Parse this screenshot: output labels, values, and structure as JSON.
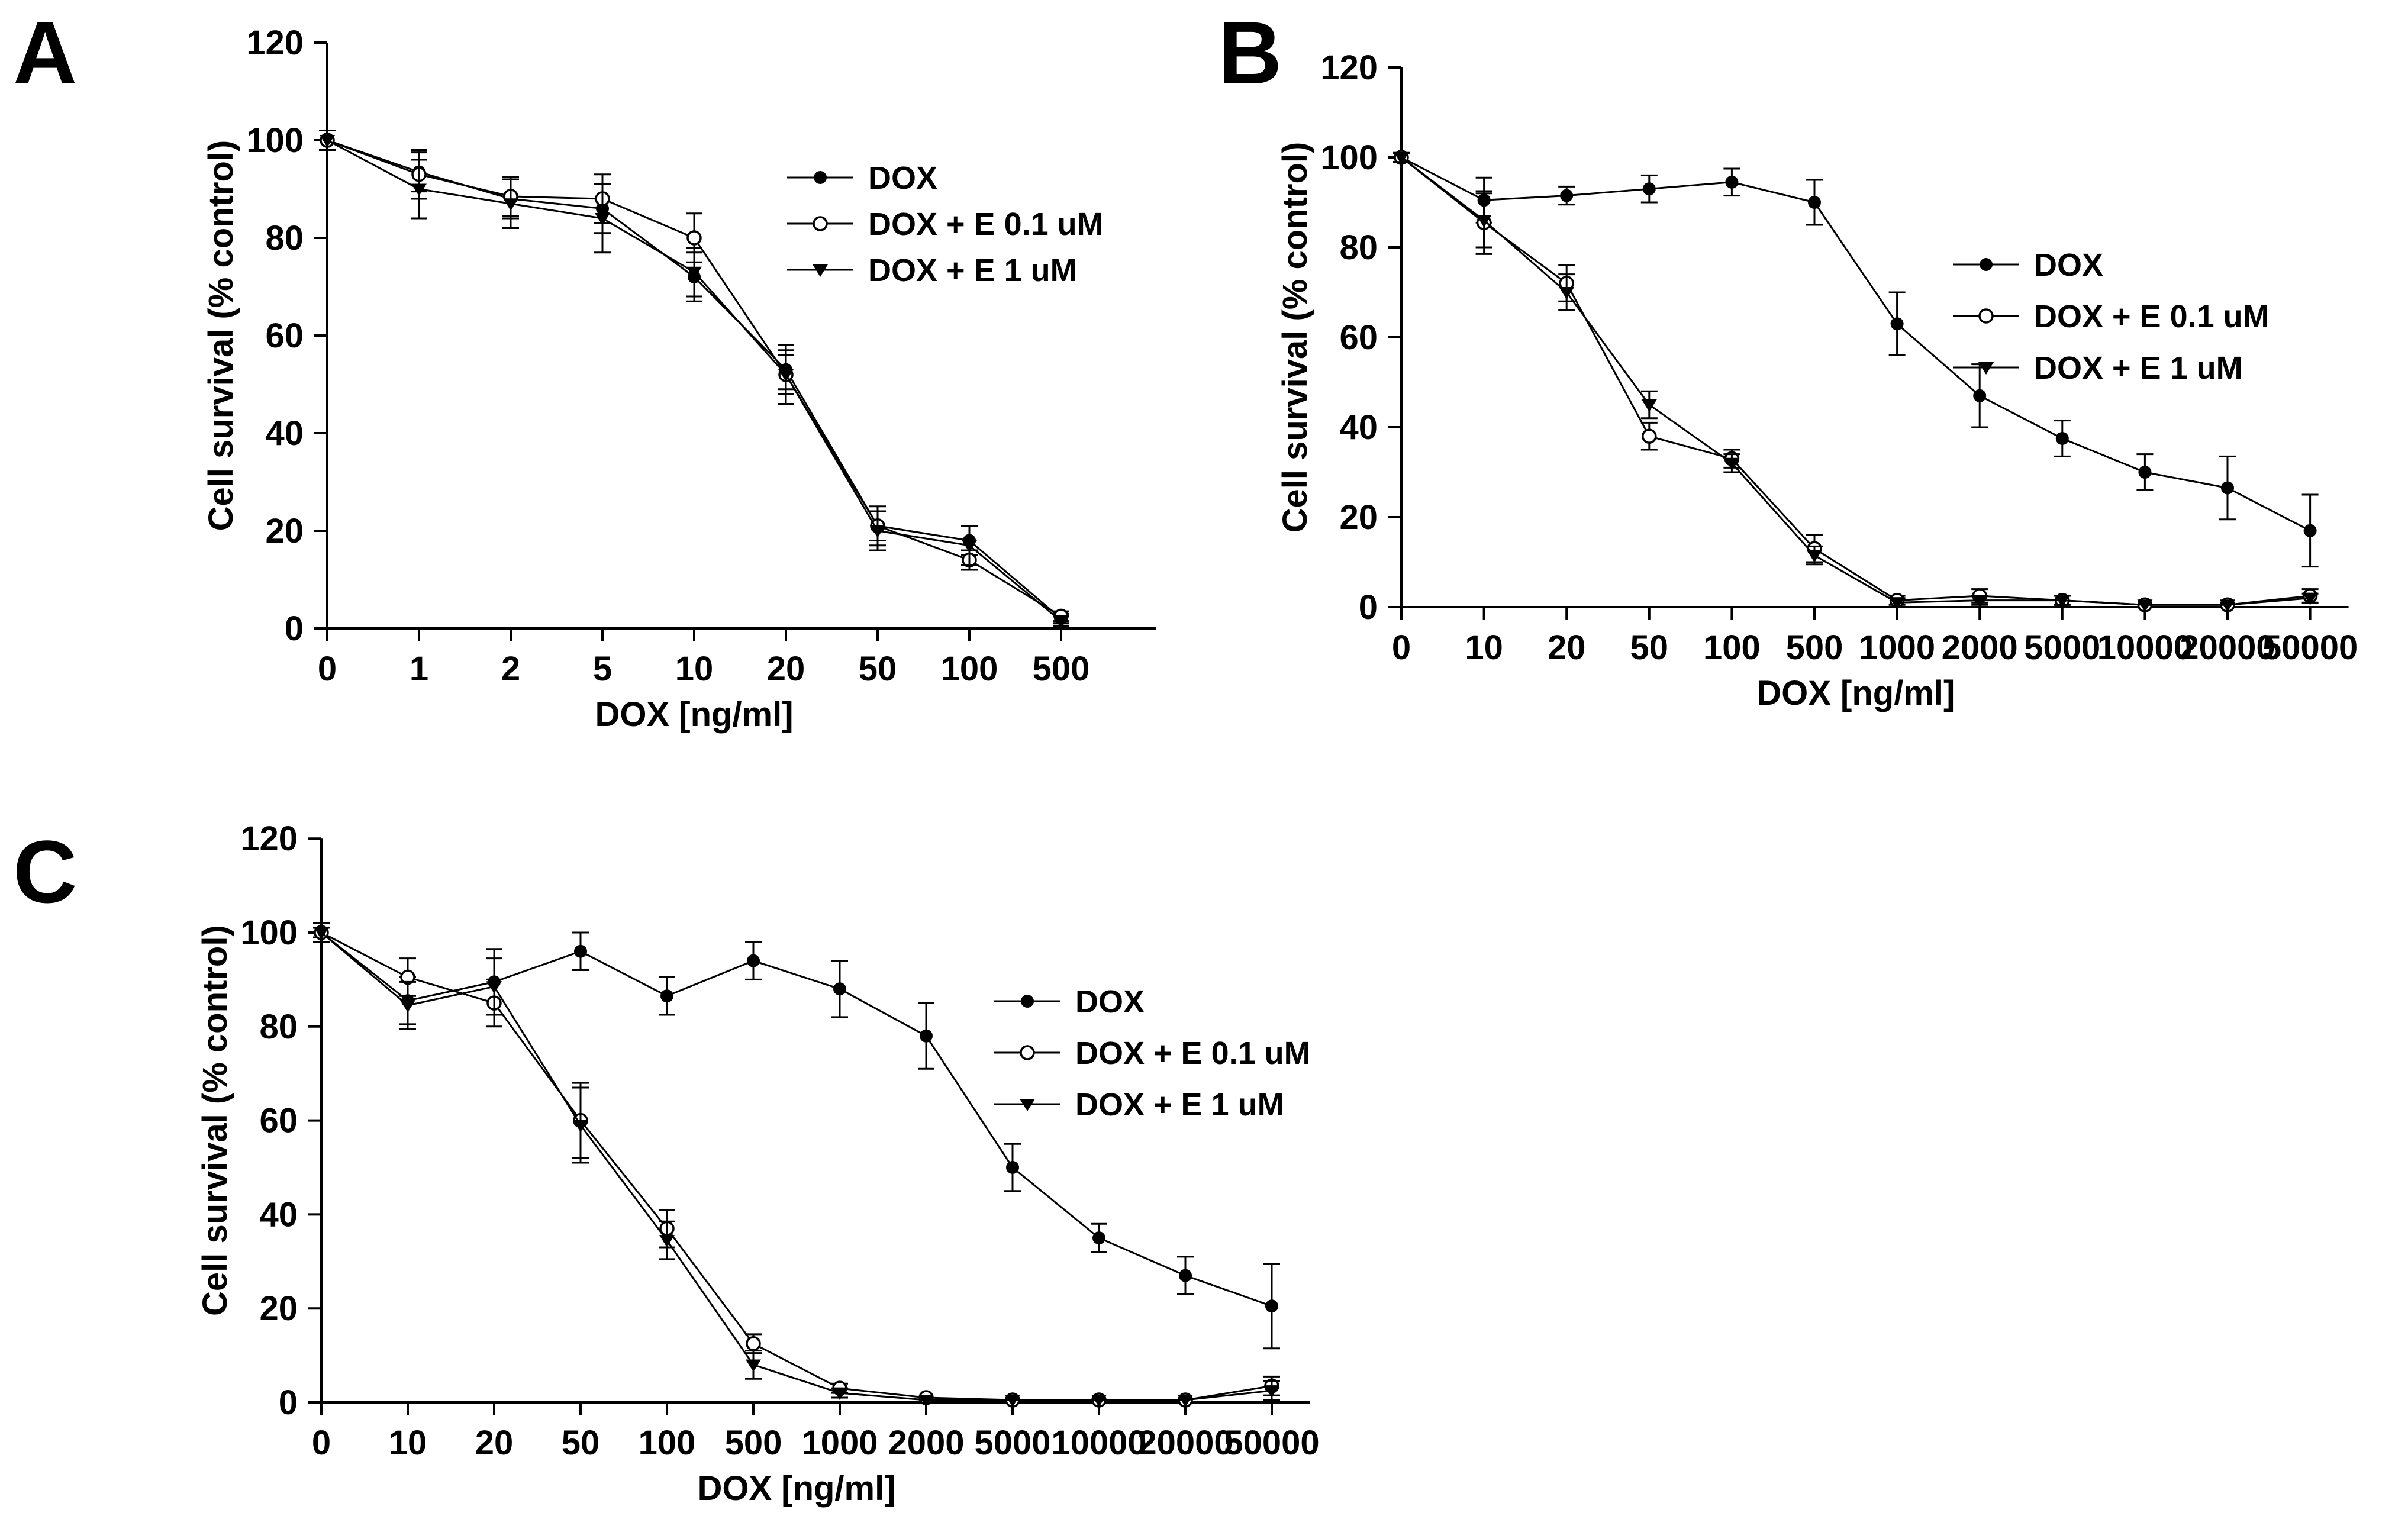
{
  "figure": {
    "background": "#ffffff",
    "ink_color": "#000000"
  },
  "panel_labels": {
    "a": "A",
    "b": "B",
    "c": "C"
  },
  "chart_data": [
    {
      "type": "line",
      "panel": "A",
      "title": "",
      "xlabel": "DOX [ng/ml]",
      "ylabel": "Cell survival (% control)",
      "categories": [
        "0",
        "1",
        "2",
        "5",
        "10",
        "20",
        "50",
        "100",
        "500"
      ],
      "ylim": [
        0,
        120
      ],
      "yticks": [
        0,
        20,
        40,
        60,
        80,
        100,
        120
      ],
      "grid": false,
      "error_bars": true,
      "legend_position": "upper-right-inside",
      "series": [
        {
          "name": "DOX",
          "marker": "filled-circle",
          "values": [
            100,
            93.5,
            88,
            86,
            72,
            53,
            21,
            18,
            2
          ],
          "errors": [
            2,
            4,
            4,
            5,
            5,
            4,
            4,
            3,
            1
          ]
        },
        {
          "name": "DOX + E 0.1 uM",
          "marker": "open-circle",
          "values": [
            100,
            93,
            88.5,
            88,
            80,
            52,
            21,
            14,
            2.5
          ],
          "errors": [
            2,
            5,
            4,
            5,
            5,
            6,
            3,
            2,
            1
          ]
        },
        {
          "name": "DOX + E 1 uM",
          "marker": "filled-triangle-down",
          "values": [
            100,
            90,
            87,
            84,
            73,
            52,
            20,
            17,
            1.5
          ],
          "errors": [
            2,
            6,
            5,
            7,
            5,
            4,
            4,
            4,
            1
          ]
        }
      ]
    },
    {
      "type": "line",
      "panel": "B",
      "title": "",
      "xlabel": "DOX [ng/ml]",
      "ylabel": "Cell survival (% control)",
      "categories": [
        "0",
        "10",
        "20",
        "50",
        "100",
        "500",
        "1000",
        "2000",
        "5000",
        "10000",
        "20000",
        "50000"
      ],
      "ylim": [
        0,
        120
      ],
      "yticks": [
        0,
        20,
        40,
        60,
        80,
        100,
        120
      ],
      "grid": false,
      "error_bars": true,
      "legend_position": "upper-right-inside",
      "series": [
        {
          "name": "DOX",
          "marker": "filled-circle",
          "values": [
            100,
            90.5,
            91.5,
            93,
            94.5,
            90,
            63,
            47,
            37.5,
            30,
            26.5,
            17
          ],
          "errors": [
            1,
            5,
            2,
            3,
            3,
            5,
            7,
            7,
            4,
            4,
            7,
            8
          ]
        },
        {
          "name": "DOX + E 0.1 uM",
          "marker": "open-circle",
          "values": [
            100,
            85.5,
            72,
            38,
            33,
            13,
            1.5,
            2.5,
            1.5,
            0.5,
            0.5,
            2.5
          ],
          "errors": [
            1,
            7,
            4,
            3,
            2,
            3,
            1,
            1.5,
            1,
            0.5,
            0.5,
            1.5
          ]
        },
        {
          "name": "DOX + E 1 uM",
          "marker": "filled-triangle-down",
          "values": [
            100,
            86,
            70,
            45,
            32,
            11.5,
            1,
            1.5,
            1.5,
            0.5,
            0.5,
            2
          ],
          "errors": [
            1,
            6,
            4,
            3,
            2,
            2,
            1,
            1,
            1,
            0.5,
            0.5,
            1
          ]
        }
      ]
    },
    {
      "type": "line",
      "panel": "C",
      "title": "",
      "xlabel": "DOX [ng/ml]",
      "ylabel": "Cell survival (% control)",
      "categories": [
        "0",
        "10",
        "20",
        "50",
        "100",
        "500",
        "1000",
        "2000",
        "5000",
        "10000",
        "20000",
        "50000"
      ],
      "ylim": [
        0,
        120
      ],
      "yticks": [
        0,
        20,
        40,
        60,
        80,
        100,
        120
      ],
      "grid": false,
      "error_bars": true,
      "legend_position": "upper-right-inside",
      "series": [
        {
          "name": "DOX",
          "marker": "filled-circle",
          "values": [
            100,
            85.5,
            89.5,
            96,
            86.5,
            94,
            88,
            78,
            50,
            35,
            27,
            20.5
          ],
          "errors": [
            1,
            5,
            7,
            4,
            4,
            4,
            6,
            7,
            5,
            3,
            4,
            9
          ]
        },
        {
          "name": "DOX + E 0.1 uM",
          "marker": "open-circle",
          "values": [
            100,
            90.5,
            85,
            60,
            37,
            12.5,
            3,
            1,
            0.5,
            0.5,
            0.5,
            3.5
          ],
          "errors": [
            2,
            4,
            5,
            8,
            4,
            2,
            1,
            0.5,
            0.5,
            0.5,
            0.5,
            2
          ]
        },
        {
          "name": "DOX + E 1 uM",
          "marker": "filled-triangle-down",
          "values": [
            100,
            84.5,
            88.5,
            59,
            34.5,
            8,
            2,
            0.5,
            0.5,
            0.5,
            0.5,
            2.5
          ],
          "errors": [
            2,
            5,
            6,
            8,
            4,
            3,
            1,
            0.5,
            0.5,
            0.5,
            0.5,
            2
          ]
        }
      ]
    }
  ]
}
